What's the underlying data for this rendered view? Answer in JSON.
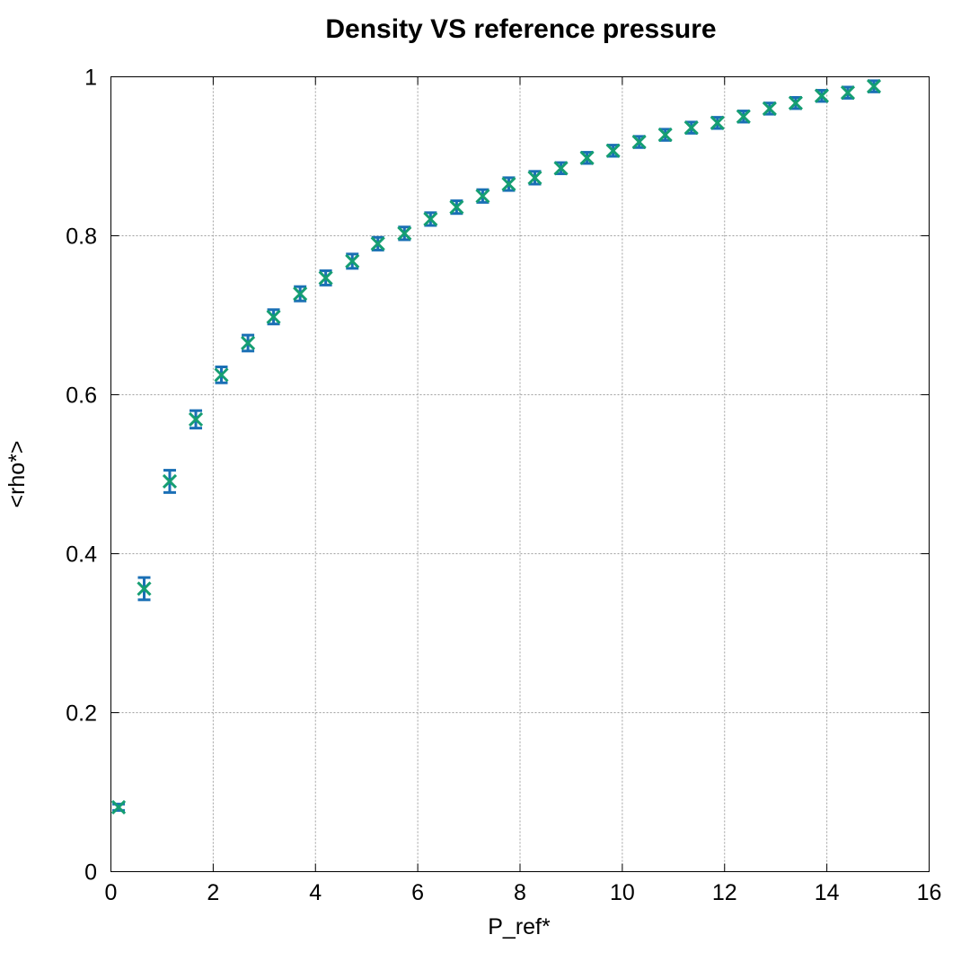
{
  "chart_data": {
    "type": "scatter",
    "title": "Density VS reference pressure",
    "xlabel": "P_ref*",
    "ylabel": "<rho*>",
    "xlim": [
      0,
      16
    ],
    "ylim": [
      0,
      1
    ],
    "xticks": [
      "0",
      "2",
      "4",
      "6",
      "8",
      "10",
      "12",
      "14",
      "16"
    ],
    "yticks": [
      "0",
      "0.2",
      "0.4",
      "0.6",
      "0.8",
      "1"
    ],
    "grid": true,
    "legend": "none",
    "colors": {
      "errorbar": "#1a6fb5",
      "marker": "#159e72"
    },
    "points": [
      {
        "x": 0.15,
        "y": 0.081,
        "err": 0.004
      },
      {
        "x": 0.65,
        "y": 0.356,
        "err": 0.014
      },
      {
        "x": 1.15,
        "y": 0.491,
        "err": 0.014
      },
      {
        "x": 1.66,
        "y": 0.569,
        "err": 0.011
      },
      {
        "x": 2.16,
        "y": 0.625,
        "err": 0.01
      },
      {
        "x": 2.68,
        "y": 0.665,
        "err": 0.01
      },
      {
        "x": 3.18,
        "y": 0.698,
        "err": 0.009
      },
      {
        "x": 3.7,
        "y": 0.727,
        "err": 0.009
      },
      {
        "x": 4.2,
        "y": 0.747,
        "err": 0.009
      },
      {
        "x": 4.72,
        "y": 0.768,
        "err": 0.009
      },
      {
        "x": 5.22,
        "y": 0.79,
        "err": 0.008
      },
      {
        "x": 5.74,
        "y": 0.803,
        "err": 0.008
      },
      {
        "x": 6.25,
        "y": 0.821,
        "err": 0.008
      },
      {
        "x": 6.76,
        "y": 0.836,
        "err": 0.008
      },
      {
        "x": 7.27,
        "y": 0.85,
        "err": 0.008
      },
      {
        "x": 7.78,
        "y": 0.865,
        "err": 0.008
      },
      {
        "x": 8.29,
        "y": 0.873,
        "err": 0.008
      },
      {
        "x": 8.8,
        "y": 0.885,
        "err": 0.007
      },
      {
        "x": 9.31,
        "y": 0.898,
        "err": 0.007
      },
      {
        "x": 9.82,
        "y": 0.907,
        "err": 0.007
      },
      {
        "x": 10.33,
        "y": 0.918,
        "err": 0.007
      },
      {
        "x": 10.84,
        "y": 0.927,
        "err": 0.007
      },
      {
        "x": 11.35,
        "y": 0.936,
        "err": 0.007
      },
      {
        "x": 11.86,
        "y": 0.942,
        "err": 0.007
      },
      {
        "x": 12.37,
        "y": 0.95,
        "err": 0.007
      },
      {
        "x": 12.88,
        "y": 0.96,
        "err": 0.007
      },
      {
        "x": 13.39,
        "y": 0.967,
        "err": 0.007
      },
      {
        "x": 13.9,
        "y": 0.976,
        "err": 0.007
      },
      {
        "x": 14.41,
        "y": 0.98,
        "err": 0.007
      },
      {
        "x": 14.92,
        "y": 0.988,
        "err": 0.007
      }
    ]
  }
}
